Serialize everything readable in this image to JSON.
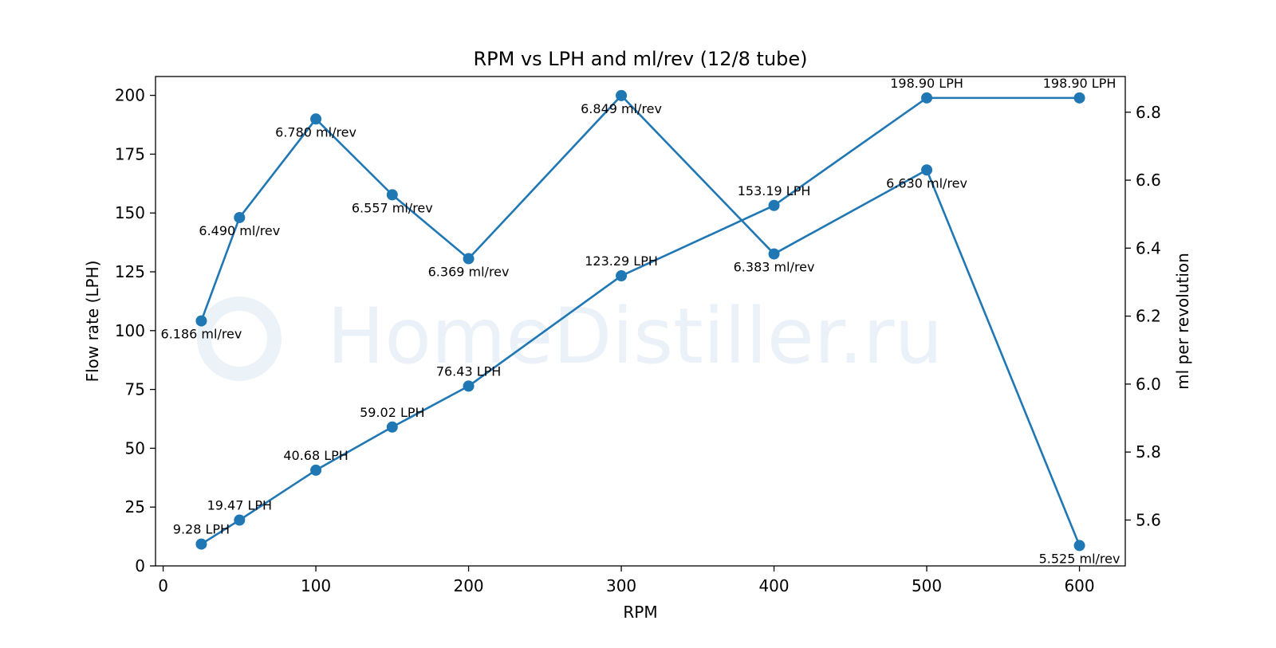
{
  "watermark": "HomeDistiller.ru",
  "chart_data": {
    "type": "line",
    "title": "RPM vs LPH and ml/rev (12/8 tube)",
    "xlabel": "RPM",
    "ylabel_left": "Flow rate (LPH)",
    "ylabel_right": "ml per revolution",
    "xlim": [
      -5,
      630
    ],
    "ylim_left": [
      0,
      208
    ],
    "ylim_right": [
      5.465,
      6.905
    ],
    "xticks": [
      "0",
      "100",
      "200",
      "300",
      "400",
      "500",
      "600"
    ],
    "yticks_left": [
      "0",
      "25",
      "50",
      "75",
      "100",
      "125",
      "150",
      "175",
      "200"
    ],
    "yticks_right": [
      "5.6",
      "5.8",
      "6.0",
      "6.2",
      "6.4",
      "6.6",
      "6.8"
    ],
    "color": "#1f77b4",
    "grid": false,
    "x": [
      25,
      50,
      100,
      150,
      200,
      300,
      400,
      500,
      600
    ],
    "series": [
      {
        "axis": "left",
        "values": [
          9.28,
          19.47,
          40.68,
          59.02,
          76.43,
          123.29,
          153.19,
          198.9,
          198.9
        ],
        "labels": [
          "9.28 LPH",
          "19.47 LPH",
          "40.68 LPH",
          "59.02 LPH",
          "76.43 LPH",
          "123.29 LPH",
          "153.19 LPH",
          "198.90 LPH",
          "198.90 LPH"
        ]
      },
      {
        "axis": "right",
        "values": [
          6.186,
          6.49,
          6.78,
          6.557,
          6.369,
          6.849,
          6.383,
          6.63,
          5.525
        ],
        "labels": [
          "6.186 ml/rev",
          "6.490 ml/rev",
          "6.780 ml/rev",
          "6.557 ml/rev",
          "6.369 ml/rev",
          "6.849 ml/rev",
          "6.383 ml/rev",
          "6.630 ml/rev",
          "5.525 ml/rev"
        ]
      }
    ]
  }
}
